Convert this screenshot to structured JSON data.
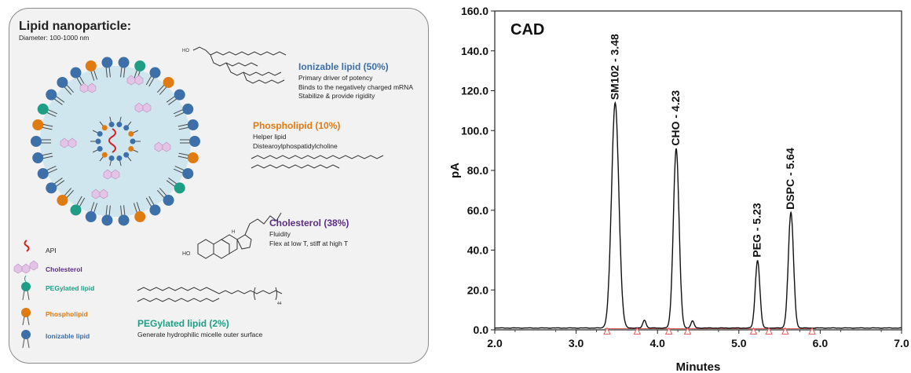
{
  "left_panel": {
    "title": "Lipid nanoparticle:",
    "diameter": "Diameter: 100-1000 nm",
    "components": [
      {
        "title": "Ionizable lipid (50%)",
        "color": "#3d6fa8",
        "lines": [
          "Primary driver of potency",
          "Binds to the negatively charged mRNA",
          "Stabilize & provide rigidity"
        ]
      },
      {
        "title": "Phospholipid (10%)",
        "color": "#e07b12",
        "lines": [
          "Helper lipid",
          "Distearoylphospatidylcholine"
        ]
      },
      {
        "title": "Cholesterol (38%)",
        "color": "#5a2d82",
        "lines": [
          "Fluidity",
          "Flex at low T, stiff at high T"
        ]
      },
      {
        "title": "PEGylated lipid (2%)",
        "color": "#1f9e85",
        "lines": [
          "Generate hydrophilic micelle outer surface"
        ]
      }
    ],
    "legend": [
      {
        "label": "API",
        "color": "#222222",
        "icon": "api-strand-icon"
      },
      {
        "label": "Cholesterol",
        "color": "#5a2d82",
        "icon": "cholesterol-icon"
      },
      {
        "label": "PEGylated lipid",
        "color": "#1f9e85",
        "icon": "pegylated-lipid-icon"
      },
      {
        "label": "Phospholipid",
        "color": "#e07b12",
        "icon": "phospholipid-icon"
      },
      {
        "label": "Ionizable lipid",
        "color": "#3d6fa8",
        "icon": "ionizable-lipid-icon"
      }
    ],
    "structure_labels": {
      "ho_ionizable": "HO",
      "ho_cholesterol": "HO",
      "h_atom": "H",
      "peg_subscript": "44"
    }
  },
  "chart_data": {
    "type": "line",
    "label": "CAD",
    "xlabel": "Minutes",
    "ylabel": "pA",
    "xlim": [
      2.0,
      7.0
    ],
    "ylim": [
      0.0,
      160.0
    ],
    "x_ticks": [
      "2.0",
      "3.0",
      "4.0",
      "5.0",
      "6.0",
      "7.0"
    ],
    "y_ticks": [
      "0.0",
      "20.0",
      "40.0",
      "60.0",
      "80.0",
      "100.0",
      "120.0",
      "140.0",
      "160.0"
    ],
    "line_color": "#111111",
    "baseline_color": "#e06060",
    "peaks": [
      {
        "label": "SM102 - 3.48",
        "x": 3.48,
        "y": 113
      },
      {
        "label": "CHO - 4.23",
        "x": 4.23,
        "y": 90
      },
      {
        "label": "PEG - 5.23",
        "x": 5.23,
        "y": 34
      },
      {
        "label": "DSPC - 5.64",
        "x": 5.64,
        "y": 58
      }
    ],
    "minor_peaks": [
      {
        "x": 3.84,
        "y": 4
      },
      {
        "x": 4.43,
        "y": 3.5
      }
    ],
    "integration_markers": [
      3.38,
      3.75,
      4.14,
      4.37,
      5.18,
      5.37,
      5.57,
      5.9
    ]
  }
}
